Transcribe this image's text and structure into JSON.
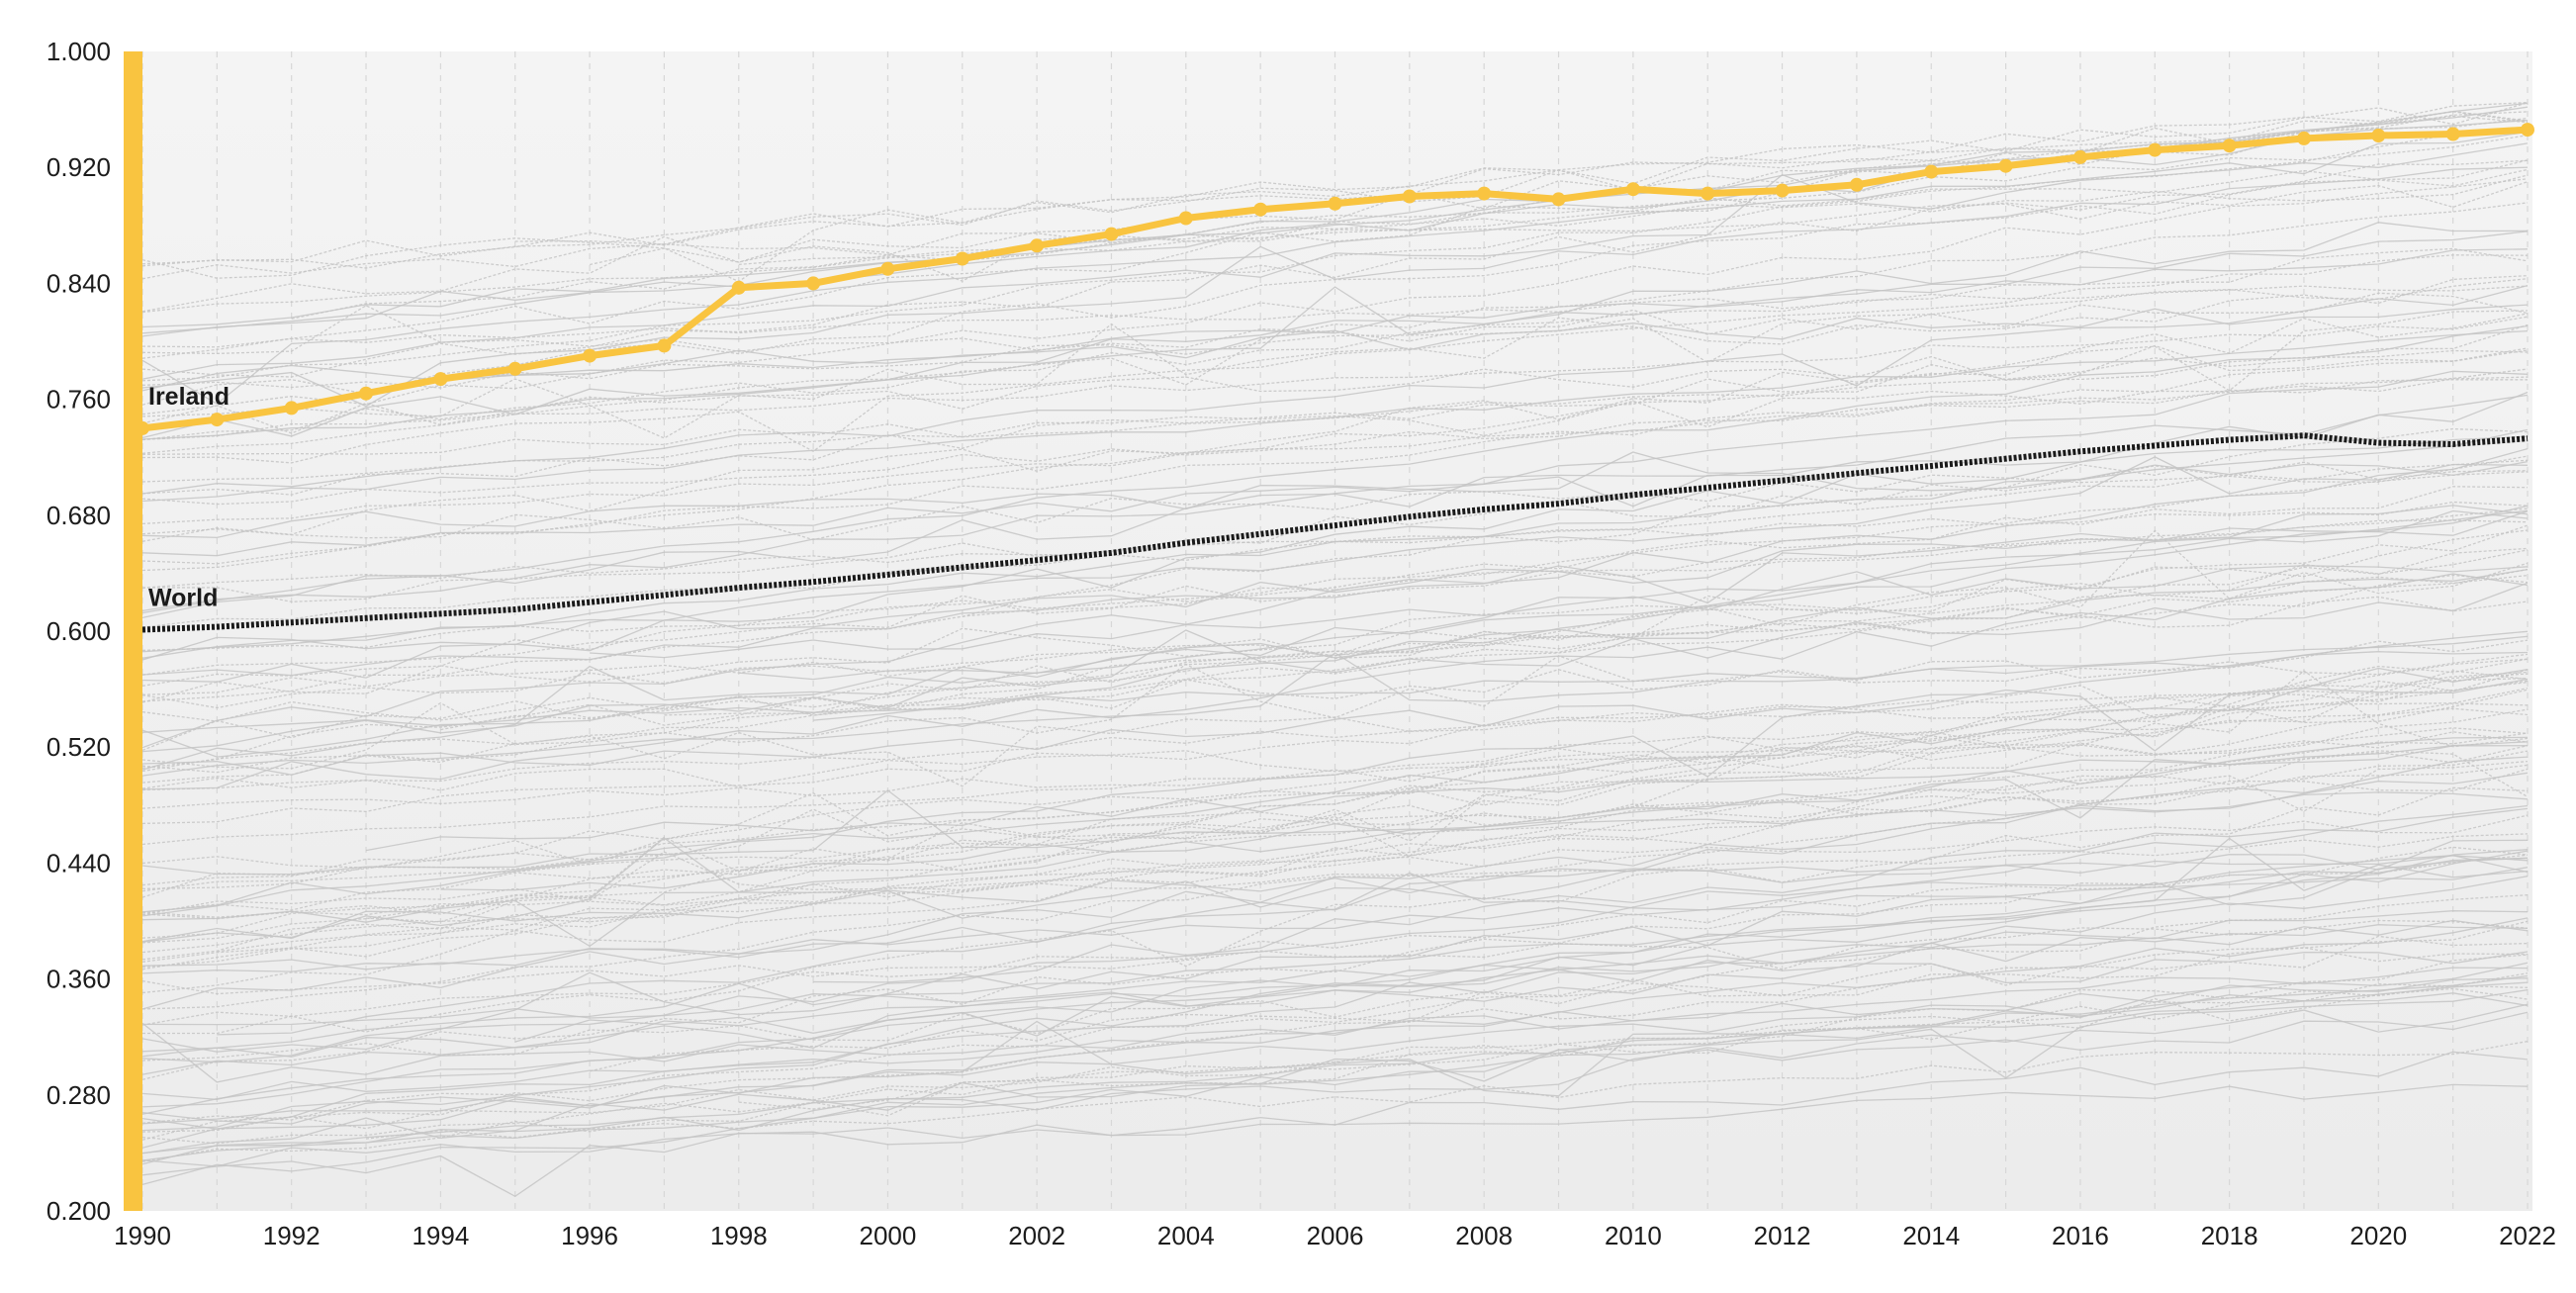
{
  "chart_data": {
    "type": "line",
    "title": "",
    "xlabel": "",
    "ylabel": "",
    "xlim": [
      1990,
      2022
    ],
    "ylim": [
      0.2,
      1.0
    ],
    "grid": true,
    "x_ticks": [
      1990,
      1992,
      1994,
      1996,
      1998,
      2000,
      2002,
      2004,
      2006,
      2008,
      2010,
      2012,
      2014,
      2016,
      2018,
      2020,
      2022
    ],
    "x_tick_labels": [
      "1990",
      "1992",
      "1994",
      "1996",
      "1998",
      "2000",
      "2002",
      "2004",
      "2006",
      "2008",
      "2010",
      "2012",
      "2014",
      "2016",
      "2018",
      "2020",
      "2022"
    ],
    "y_ticks": [
      0.2,
      0.28,
      0.36,
      0.44,
      0.52,
      0.6,
      0.68,
      0.76,
      0.84,
      0.92,
      1.0
    ],
    "y_tick_labels": [
      "0.200",
      "0.280",
      "0.360",
      "0.440",
      "0.520",
      "0.600",
      "0.680",
      "0.760",
      "0.840",
      "0.920",
      "1.000"
    ],
    "x": [
      1990,
      1991,
      1992,
      1993,
      1994,
      1995,
      1996,
      1997,
      1998,
      1999,
      2000,
      2001,
      2002,
      2003,
      2004,
      2005,
      2006,
      2007,
      2008,
      2009,
      2010,
      2011,
      2012,
      2013,
      2014,
      2015,
      2016,
      2017,
      2018,
      2019,
      2020,
      2021,
      2022
    ],
    "highlight_series": [
      {
        "name": "Ireland",
        "color": "#f9c440",
        "values": [
          0.74,
          0.746,
          0.754,
          0.764,
          0.774,
          0.781,
          0.79,
          0.797,
          0.837,
          0.84,
          0.85,
          0.857,
          0.866,
          0.874,
          0.885,
          0.891,
          0.895,
          0.9,
          0.902,
          0.898,
          0.905,
          0.902,
          0.904,
          0.908,
          0.917,
          0.921,
          0.927,
          0.932,
          0.935,
          0.94,
          0.942,
          0.943,
          0.946
        ]
      },
      {
        "name": "World",
        "color": "#1a1a1a",
        "values": [
          0.601,
          0.603,
          0.606,
          0.609,
          0.612,
          0.615,
          0.62,
          0.625,
          0.63,
          0.634,
          0.639,
          0.644,
          0.649,
          0.654,
          0.661,
          0.667,
          0.673,
          0.679,
          0.684,
          0.688,
          0.694,
          0.699,
          0.704,
          0.709,
          0.714,
          0.719,
          0.724,
          0.728,
          0.732,
          0.735,
          0.73,
          0.729,
          0.733
        ]
      }
    ],
    "background_series": {
      "color": "#c4c4c4",
      "count": 160,
      "value_range_1990": [
        0.22,
        0.86
      ],
      "value_range_2022": [
        0.38,
        0.96
      ]
    }
  },
  "colors": {
    "accent": "#f9c440",
    "world": "#1a1a1a",
    "grid": "#d7d7d7",
    "background_lines": "#c4c4c4",
    "plot_bg": "#f5f5f5"
  }
}
